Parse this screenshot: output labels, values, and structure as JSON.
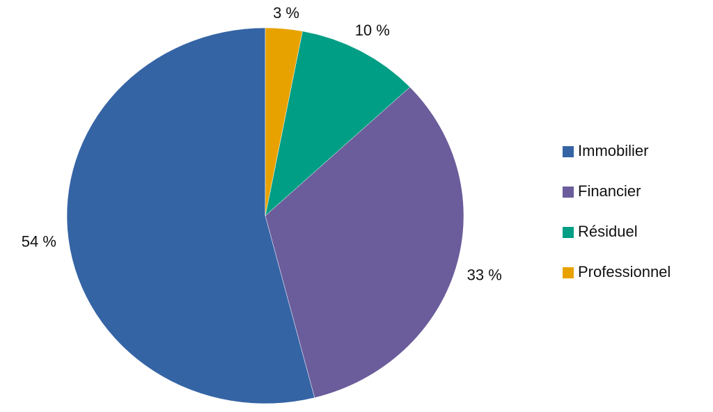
{
  "chart_data": {
    "type": "pie",
    "categories": [
      "Immobilier",
      "Financier",
      "Résiduel",
      "Professionnel"
    ],
    "values": [
      54,
      33,
      10,
      3
    ],
    "value_labels": [
      "54 %",
      "33 %",
      "10 %",
      "3 %"
    ],
    "colors": [
      "#3564a5",
      "#6b5d9b",
      "#009e84",
      "#e8a200"
    ],
    "legend": "right"
  }
}
